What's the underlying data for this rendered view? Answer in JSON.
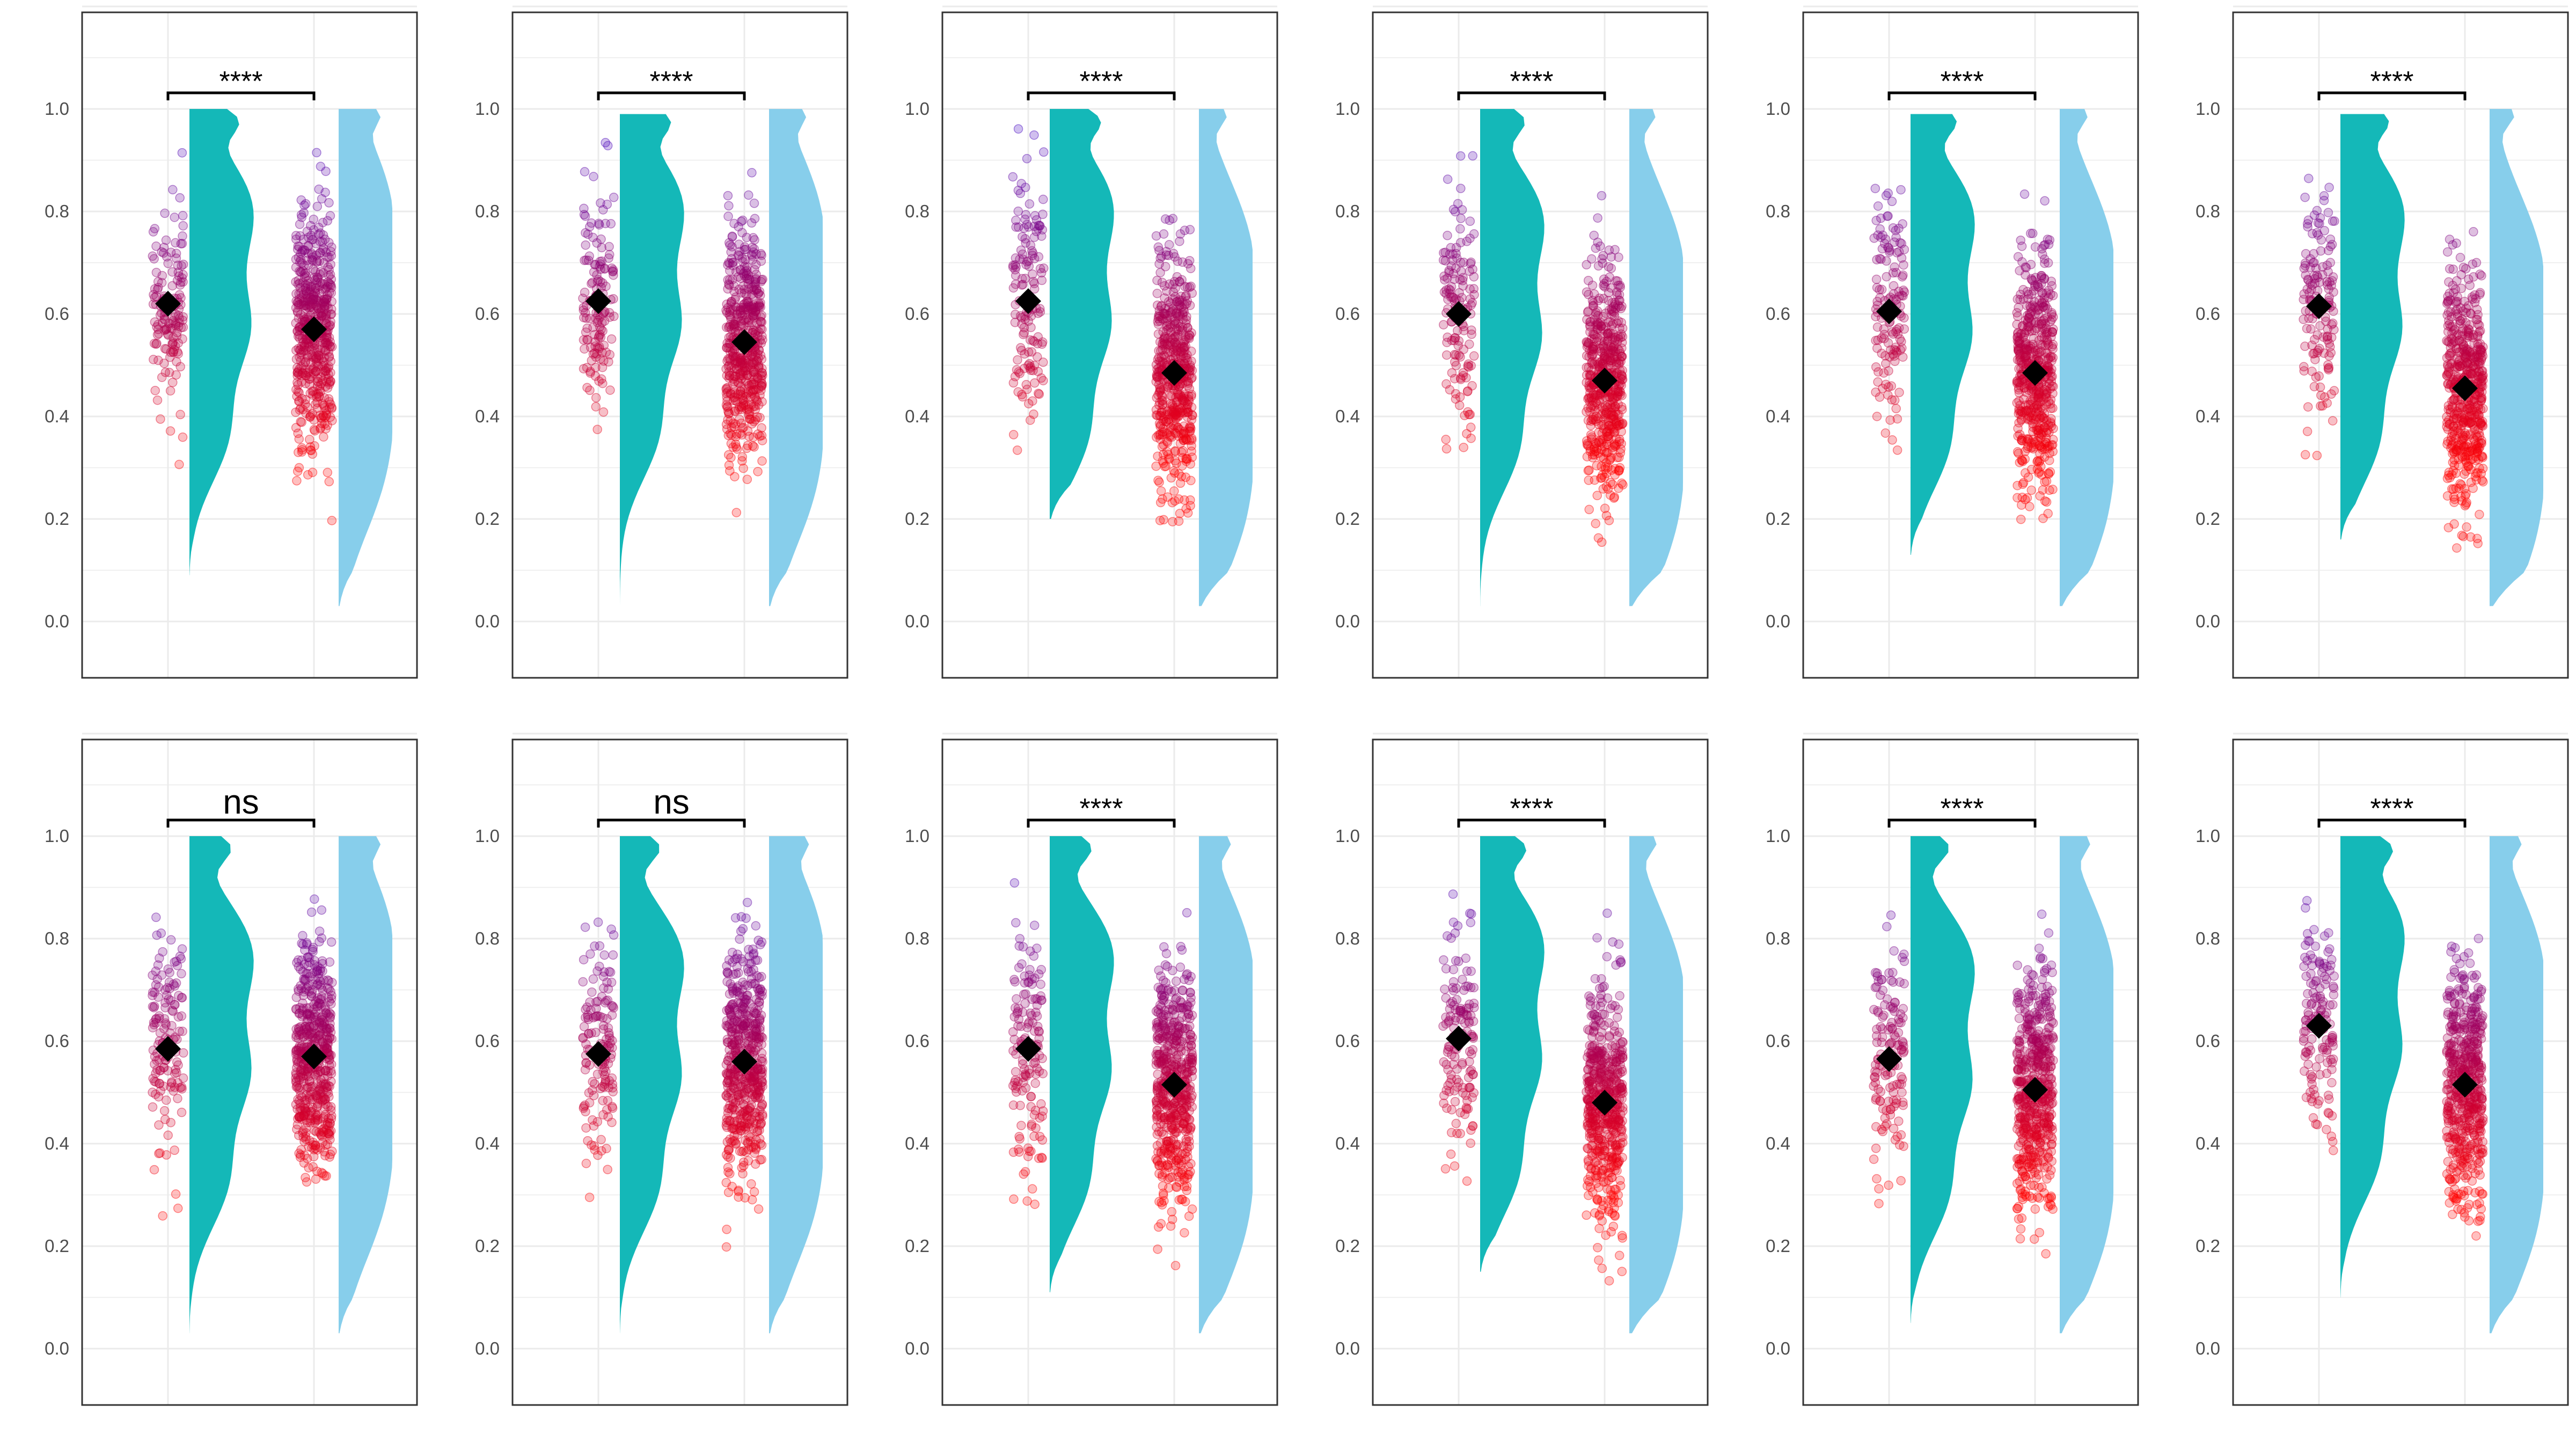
{
  "chart_data": {
    "type": "raincloud",
    "layout": {
      "rows": 2,
      "cols": 6
    },
    "ylim": [
      -0.05,
      1.25
    ],
    "yticks": [
      "0.0",
      "0.2",
      "0.4",
      "0.6",
      "0.8",
      "1.0"
    ],
    "grid": true,
    "legend": "none",
    "colors": {
      "group1_density": "#14B8B8",
      "group2_density": "#87CEEB",
      "point_low": "#FF0000",
      "point_high": "#0000FF",
      "mean_marker": "#000000",
      "panel_border": "#333333",
      "grid": "#EBEBEB"
    },
    "panels": [
      {
        "significance": "****",
        "group1": {
          "mean": 0.62,
          "min": 0.09,
          "max": 1.0
        },
        "group2": {
          "mean": 0.57,
          "min": 0.03,
          "max": 1.0
        }
      },
      {
        "significance": "****",
        "group1": {
          "mean": 0.625,
          "min": 0.03,
          "max": 0.99
        },
        "group2": {
          "mean": 0.545,
          "min": 0.03,
          "max": 1.0
        }
      },
      {
        "significance": "****",
        "group1": {
          "mean": 0.625,
          "min": 0.2,
          "max": 1.0
        },
        "group2": {
          "mean": 0.485,
          "min": 0.03,
          "max": 1.0
        }
      },
      {
        "significance": "****",
        "group1": {
          "mean": 0.6,
          "min": 0.03,
          "max": 1.0
        },
        "group2": {
          "mean": 0.47,
          "min": 0.03,
          "max": 1.0
        }
      },
      {
        "significance": "****",
        "group1": {
          "mean": 0.605,
          "min": 0.13,
          "max": 0.99
        },
        "group2": {
          "mean": 0.485,
          "min": 0.03,
          "max": 1.0
        }
      },
      {
        "significance": "****",
        "group1": {
          "mean": 0.615,
          "min": 0.16,
          "max": 0.99
        },
        "group2": {
          "mean": 0.455,
          "min": 0.03,
          "max": 1.0
        }
      },
      {
        "significance": "ns",
        "group1": {
          "mean": 0.585,
          "min": 0.03,
          "max": 1.0
        },
        "group2": {
          "mean": 0.57,
          "min": 0.03,
          "max": 1.0
        }
      },
      {
        "significance": "ns",
        "group1": {
          "mean": 0.575,
          "min": 0.03,
          "max": 1.0
        },
        "group2": {
          "mean": 0.56,
          "min": 0.03,
          "max": 1.0
        }
      },
      {
        "significance": "****",
        "group1": {
          "mean": 0.585,
          "min": 0.11,
          "max": 1.0
        },
        "group2": {
          "mean": 0.515,
          "min": 0.03,
          "max": 1.0
        }
      },
      {
        "significance": "****",
        "group1": {
          "mean": 0.605,
          "min": 0.15,
          "max": 1.0
        },
        "group2": {
          "mean": 0.48,
          "min": 0.03,
          "max": 1.0
        }
      },
      {
        "significance": "****",
        "group1": {
          "mean": 0.565,
          "min": 0.05,
          "max": 1.0
        },
        "group2": {
          "mean": 0.505,
          "min": 0.03,
          "max": 1.0
        }
      },
      {
        "significance": "****",
        "group1": {
          "mean": 0.63,
          "min": 0.1,
          "max": 1.0
        },
        "group2": {
          "mean": 0.515,
          "min": 0.03,
          "max": 1.0
        }
      }
    ]
  }
}
